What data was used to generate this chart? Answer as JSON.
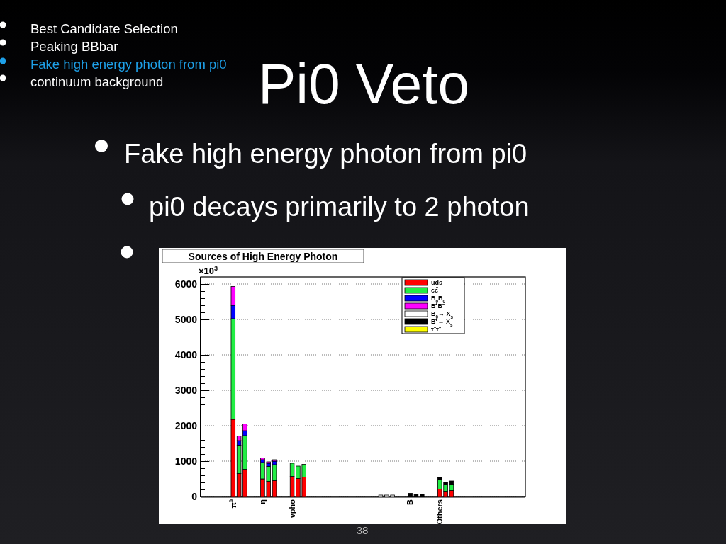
{
  "chart_data": {
    "type": "bar",
    "title": "Sources of High Energy Photon",
    "ylabel": "×10$^{3}$",
    "categories": [
      null,
      null,
      null,
      null,
      null,
      "π⁰",
      null,
      null,
      null,
      null,
      "η",
      null,
      null,
      null,
      null,
      "vpho",
      null,
      null,
      null,
      null,
      null,
      null,
      null,
      null,
      null,
      null,
      null,
      null,
      null,
      null,
      null,
      null,
      null,
      null,
      null,
      "B",
      null,
      null,
      null,
      null,
      "Others",
      null,
      null,
      null,
      null,
      null,
      null,
      null,
      null,
      null,
      null,
      null,
      null,
      null,
      null
    ],
    "stacked": true,
    "series": [
      {
        "name": "uds",
        "color": "#ff0000",
        "values": [
          null,
          null,
          null,
          null,
          null,
          2180,
          650,
          770,
          null,
          null,
          500,
          430,
          450,
          null,
          null,
          570,
          510,
          550,
          null,
          null,
          null,
          null,
          null,
          null,
          null,
          null,
          null,
          null,
          null,
          null,
          null,
          null,
          null,
          null,
          null,
          null,
          null,
          null,
          null,
          null,
          210,
          150,
          170,
          null,
          null,
          null,
          null,
          null,
          null,
          null,
          null,
          null,
          null,
          null,
          null
        ]
      },
      {
        "name": "cc̄",
        "color": "#22ee44",
        "values": [
          null,
          null,
          null,
          null,
          null,
          2840,
          800,
          950,
          null,
          null,
          460,
          420,
          450,
          null,
          null,
          370,
          350,
          360,
          null,
          null,
          null,
          null,
          null,
          null,
          null,
          null,
          null,
          null,
          null,
          null,
          null,
          null,
          null,
          null,
          null,
          null,
          null,
          null,
          null,
          null,
          260,
          180,
          180,
          null,
          null,
          null,
          null,
          null,
          null,
          null,
          null,
          null,
          null,
          null,
          null
        ]
      },
      {
        "name": "B$_{0}$B̄$_{0}$",
        "color": "#0000ff",
        "values": [
          null,
          null,
          null,
          null,
          null,
          380,
          130,
          140,
          null,
          null,
          80,
          90,
          100,
          null,
          null,
          null,
          null,
          null,
          null,
          null,
          null,
          null,
          null,
          null,
          null,
          null,
          null,
          null,
          null,
          null,
          null,
          null,
          null,
          null,
          null,
          null,
          null,
          null,
          null,
          null,
          null,
          null,
          null,
          null,
          null,
          null,
          null,
          null,
          null,
          null,
          null,
          null,
          null,
          null,
          null
        ]
      },
      {
        "name": "B⁺B⁻",
        "color": "#ff00ff",
        "values": [
          null,
          null,
          null,
          null,
          null,
          530,
          130,
          190,
          null,
          null,
          50,
          40,
          40,
          null,
          null,
          null,
          null,
          null,
          null,
          null,
          null,
          null,
          null,
          null,
          null,
          null,
          null,
          null,
          null,
          null,
          null,
          null,
          null,
          null,
          null,
          null,
          null,
          null,
          null,
          null,
          null,
          null,
          null,
          null,
          null,
          null,
          null,
          null,
          null,
          null,
          null,
          null,
          null,
          null,
          null
        ]
      },
      {
        "name": "B$_{0}$→ X$_{s}$",
        "color": "#ffffff",
        "values": [
          null,
          null,
          null,
          null,
          null,
          null,
          null,
          null,
          null,
          null,
          null,
          null,
          null,
          null,
          null,
          null,
          null,
          null,
          null,
          null,
          null,
          null,
          null,
          null,
          null,
          null,
          null,
          null,
          null,
          null,
          40,
          40,
          40,
          null,
          null,
          null,
          null,
          null,
          null,
          null,
          null,
          null,
          null,
          null,
          null,
          null,
          null,
          null,
          null,
          null,
          null,
          null,
          null,
          null,
          null
        ]
      },
      {
        "name": "B⁺→ X$_{s}$",
        "color": "#000000",
        "values": [
          null,
          null,
          null,
          null,
          null,
          null,
          null,
          null,
          null,
          null,
          null,
          null,
          null,
          null,
          null,
          null,
          null,
          null,
          null,
          null,
          null,
          null,
          null,
          null,
          null,
          null,
          null,
          null,
          null,
          null,
          null,
          null,
          null,
          null,
          null,
          90,
          70,
          70,
          null,
          null,
          70,
          70,
          90,
          null,
          null,
          null,
          null,
          null,
          null,
          null,
          null,
          null,
          null,
          null,
          null
        ]
      },
      {
        "name": "τ⁺τ⁻",
        "color": "#ffff00",
        "values": [
          null,
          null,
          null,
          null,
          null,
          null,
          null,
          null,
          null,
          null,
          null,
          null,
          null,
          null,
          null,
          null,
          null,
          null,
          null,
          null,
          null,
          null,
          null,
          null,
          null,
          null,
          null,
          null,
          null,
          null,
          null,
          null,
          null,
          null,
          null,
          null,
          null,
          null,
          null,
          null,
          null,
          null,
          null,
          null,
          null,
          null,
          null,
          null,
          null,
          null,
          null,
          null,
          null,
          null,
          null
        ]
      }
    ],
    "ylim": [
      0,
      6200
    ],
    "yticks": [
      0,
      {
        "value": 200,
        "label": null
      },
      {
        "value": 400,
        "label": null
      },
      {
        "value": 600,
        "label": null
      },
      {
        "value": 800,
        "label": null
      },
      1000,
      {
        "value": 1200,
        "label": null
      },
      {
        "value": 1400,
        "label": null
      },
      {
        "value": 1600,
        "label": null
      },
      {
        "value": 1800,
        "label": null
      },
      2000,
      {
        "value": 2200,
        "label": null
      },
      {
        "value": 2400,
        "label": null
      },
      {
        "value": 2600,
        "label": null
      },
      {
        "value": 2800,
        "label": null
      },
      3000,
      {
        "value": 3200,
        "label": null
      },
      {
        "value": 3400,
        "label": null
      },
      {
        "value": 3600,
        "label": null
      },
      {
        "value": 3800,
        "label": null
      },
      4000,
      {
        "value": 4200,
        "label": null
      },
      {
        "value": 4400,
        "label": null
      },
      {
        "value": 4600,
        "label": null
      },
      {
        "value": 4800,
        "label": null
      },
      5000,
      {
        "value": 5200,
        "label": null
      },
      {
        "value": 5400,
        "label": null
      },
      {
        "value": 5600,
        "label": null
      },
      {
        "value": 5800,
        "label": null
      },
      6000
    ],
    "grid": "y",
    "legend": "top right",
    "annotations": [
      "Best Candidate Selection",
      "Peaking BBbar",
      "Fake high energy photon from pi0",
      "continuum background",
      "Pi0 Veto",
      "Fake high energy photon from pi0",
      "pi0 decays primarily to 2 photon",
      "38"
    ]
  }
}
